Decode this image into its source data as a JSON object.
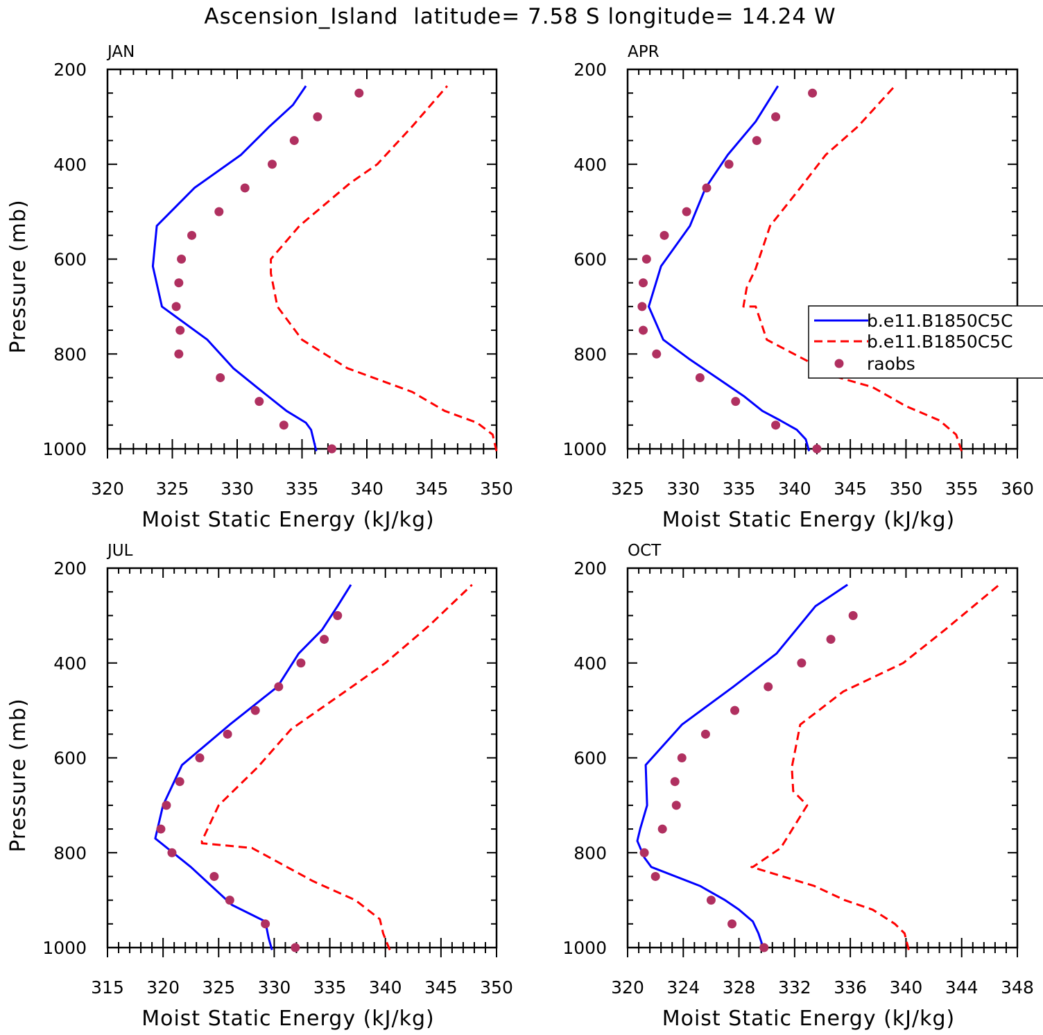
{
  "figure": {
    "title": "Ascension_Island  latitude= 7.58 S longitude= 14.24 W",
    "colors": {
      "model_1": "#0000ff",
      "model_2": "#ff0000",
      "raobs": "#b03060",
      "frame": "#000000"
    },
    "legend": {
      "location": "APR panel, right side",
      "entries": [
        {
          "label": "b.e11.B1850C5C",
          "style": "solid-line",
          "color": "#0000ff"
        },
        {
          "label": "b.e11.B1850C5C",
          "style": "dashed-line",
          "color": "#ff0000"
        },
        {
          "label": "raobs",
          "style": "marker",
          "color": "#b03060"
        }
      ]
    }
  },
  "chart_data": [
    {
      "type": "line",
      "panel_label": "JAN",
      "xlabel": "Moist Static Energy (kJ/kg)",
      "ylabel": "Pressure (mb)",
      "xlim": [
        320,
        350
      ],
      "ylim": [
        1000,
        200
      ],
      "x_ticks": [
        320,
        325,
        330,
        335,
        340,
        345,
        350
      ],
      "y_ticks": [
        200,
        400,
        600,
        800,
        1000
      ],
      "y_inverted": true,
      "series": [
        {
          "name": "b.e11.B1850C5C",
          "style": "solid",
          "color": "#0000ff",
          "x": [
            336.1,
            335.7,
            335.3,
            333.8,
            331.5,
            329.7,
            327.7,
            324.2,
            323.5,
            323.8,
            326.7,
            330.3,
            332.5,
            334.3,
            335.3
          ],
          "y": [
            1005,
            960,
            945,
            920,
            870,
            830,
            770,
            700,
            615,
            530,
            450,
            380,
            320,
            275,
            235
          ]
        },
        {
          "name": "b.e11.B1850C5C",
          "style": "dashed",
          "color": "#ff0000",
          "x": [
            350.0,
            349.7,
            348.5,
            346.0,
            343.5,
            338.5,
            335.0,
            333.1,
            332.6,
            332.6,
            334.8,
            338.7,
            340.8,
            343.5,
            346.2
          ],
          "y": [
            1005,
            970,
            945,
            920,
            880,
            830,
            770,
            700,
            630,
            600,
            530,
            440,
            400,
            320,
            235
          ]
        },
        {
          "name": "raobs",
          "style": "marker",
          "color": "#b03060",
          "x": [
            337.3,
            333.6,
            331.7,
            328.7,
            325.5,
            325.6,
            325.3,
            325.5,
            325.7,
            326.5,
            328.6,
            330.6,
            332.7,
            334.4,
            336.2,
            339.4
          ],
          "y": [
            1000,
            950,
            900,
            850,
            800,
            750,
            700,
            650,
            600,
            550,
            500,
            450,
            400,
            350,
            300,
            250
          ]
        }
      ]
    },
    {
      "type": "line",
      "panel_label": "APR",
      "xlabel": "Moist Static Energy (kJ/kg)",
      "ylabel": "",
      "xlim": [
        325,
        360
      ],
      "ylim": [
        1000,
        200
      ],
      "x_ticks": [
        325,
        330,
        335,
        340,
        345,
        350,
        355,
        360
      ],
      "y_ticks": [
        200,
        400,
        600,
        800,
        1000
      ],
      "y_inverted": true,
      "series": [
        {
          "name": "b.e11.B1850C5C",
          "style": "solid",
          "color": "#0000ff",
          "x": [
            341.3,
            341.0,
            340.2,
            338.7,
            337.1,
            335.5,
            333.0,
            330.5,
            328.2,
            326.9,
            328.0,
            330.6,
            332.0,
            334.0,
            336.5,
            338.5
          ],
          "y": [
            1005,
            980,
            960,
            940,
            920,
            890,
            850,
            810,
            770,
            700,
            615,
            530,
            450,
            380,
            310,
            235
          ]
        },
        {
          "name": "b.e11.B1850C5C",
          "style": "dashed",
          "color": "#ff0000",
          "x": [
            355.0,
            354.5,
            353.0,
            350.0,
            347.0,
            344.0,
            337.5,
            336.5,
            335.4,
            335.7,
            336.5,
            337.8,
            340.5,
            342.8,
            345.7,
            349.0
          ],
          "y": [
            1005,
            970,
            940,
            910,
            870,
            850,
            770,
            700,
            700,
            660,
            620,
            530,
            450,
            380,
            320,
            235
          ]
        },
        {
          "name": "raobs",
          "style": "marker",
          "color": "#b03060",
          "x": [
            342.0,
            338.3,
            334.7,
            331.5,
            327.6,
            326.4,
            326.3,
            326.4,
            326.7,
            328.3,
            330.3,
            332.1,
            334.1,
            336.6,
            338.3,
            341.6
          ],
          "y": [
            1000,
            950,
            900,
            850,
            800,
            750,
            700,
            650,
            600,
            550,
            500,
            450,
            400,
            350,
            300,
            250
          ]
        }
      ]
    },
    {
      "type": "line",
      "panel_label": "JUL",
      "xlabel": "Moist Static Energy (kJ/kg)",
      "ylabel": "Pressure (mb)",
      "xlim": [
        315,
        350
      ],
      "ylim": [
        1000,
        200
      ],
      "x_ticks": [
        315,
        320,
        325,
        330,
        335,
        340,
        345,
        350
      ],
      "y_ticks": [
        200,
        400,
        600,
        800,
        1000
      ],
      "y_inverted": true,
      "series": [
        {
          "name": "b.e11.B1850C5C",
          "style": "solid",
          "color": "#0000ff",
          "x": [
            329.8,
            329.5,
            329.2,
            326.2,
            322.5,
            319.3,
            320.0,
            321.7,
            326.0,
            330.3,
            332.2,
            334.3,
            335.7,
            336.9
          ],
          "y": [
            1005,
            980,
            945,
            910,
            830,
            770,
            700,
            615,
            530,
            450,
            380,
            330,
            280,
            235
          ]
        },
        {
          "name": "b.e11.B1850C5C",
          "style": "dashed",
          "color": "#ff0000",
          "x": [
            340.4,
            339.8,
            339.5,
            337.3,
            333.5,
            328.0,
            323.5,
            323.5,
            325.0,
            328.5,
            331.5,
            337.0,
            340.0,
            344.0,
            347.8
          ],
          "y": [
            1005,
            970,
            940,
            900,
            860,
            790,
            780,
            775,
            700,
            620,
            540,
            450,
            400,
            320,
            235
          ]
        },
        {
          "name": "raobs",
          "style": "marker",
          "color": "#b03060",
          "x": [
            331.9,
            329.2,
            326.0,
            324.6,
            320.8,
            319.8,
            320.3,
            321.5,
            323.3,
            325.8,
            328.3,
            330.4,
            332.4,
            334.5,
            335.7
          ],
          "y": [
            1000,
            950,
            900,
            850,
            800,
            750,
            700,
            650,
            600,
            550,
            500,
            450,
            400,
            350,
            300
          ]
        }
      ]
    },
    {
      "type": "line",
      "panel_label": "OCT",
      "xlabel": "Moist Static Energy (kJ/kg)",
      "ylabel": "",
      "xlim": [
        320,
        348
      ],
      "ylim": [
        1000,
        200
      ],
      "x_ticks": [
        320,
        324,
        328,
        332,
        336,
        340,
        344,
        348
      ],
      "y_ticks": [
        200,
        400,
        600,
        800,
        1000
      ],
      "y_inverted": true,
      "series": [
        {
          "name": "b.e11.B1850C5C",
          "style": "solid",
          "color": "#0000ff",
          "x": [
            329.8,
            329.4,
            329.0,
            328.0,
            327.0,
            325.2,
            321.7,
            321.2,
            320.7,
            320.9,
            321.4,
            321.3,
            323.9,
            327.6,
            330.7,
            333.5,
            335.8
          ],
          "y": [
            1005,
            970,
            945,
            920,
            900,
            870,
            830,
            810,
            775,
            750,
            700,
            615,
            530,
            450,
            380,
            280,
            235
          ]
        },
        {
          "name": "b.e11.B1850C5C",
          "style": "dashed",
          "color": "#ff0000",
          "x": [
            340.2,
            339.9,
            339.2,
            337.6,
            335.6,
            333.4,
            328.9,
            329.0,
            331.0,
            332.9,
            331.9,
            331.8,
            332.4,
            335.5,
            339.8,
            342.8,
            346.7
          ],
          "y": [
            1005,
            970,
            950,
            920,
            900,
            870,
            830,
            830,
            790,
            700,
            670,
            620,
            530,
            460,
            400,
            330,
            235
          ]
        },
        {
          "name": "raobs",
          "style": "marker",
          "color": "#b03060",
          "x": [
            329.8,
            327.5,
            326.0,
            322.0,
            321.2,
            322.5,
            323.5,
            323.4,
            323.9,
            325.6,
            327.7,
            330.1,
            332.5,
            334.6,
            336.2
          ],
          "y": [
            1000,
            950,
            900,
            850,
            800,
            750,
            700,
            650,
            600,
            550,
            500,
            450,
            400,
            350,
            300
          ]
        }
      ]
    }
  ]
}
